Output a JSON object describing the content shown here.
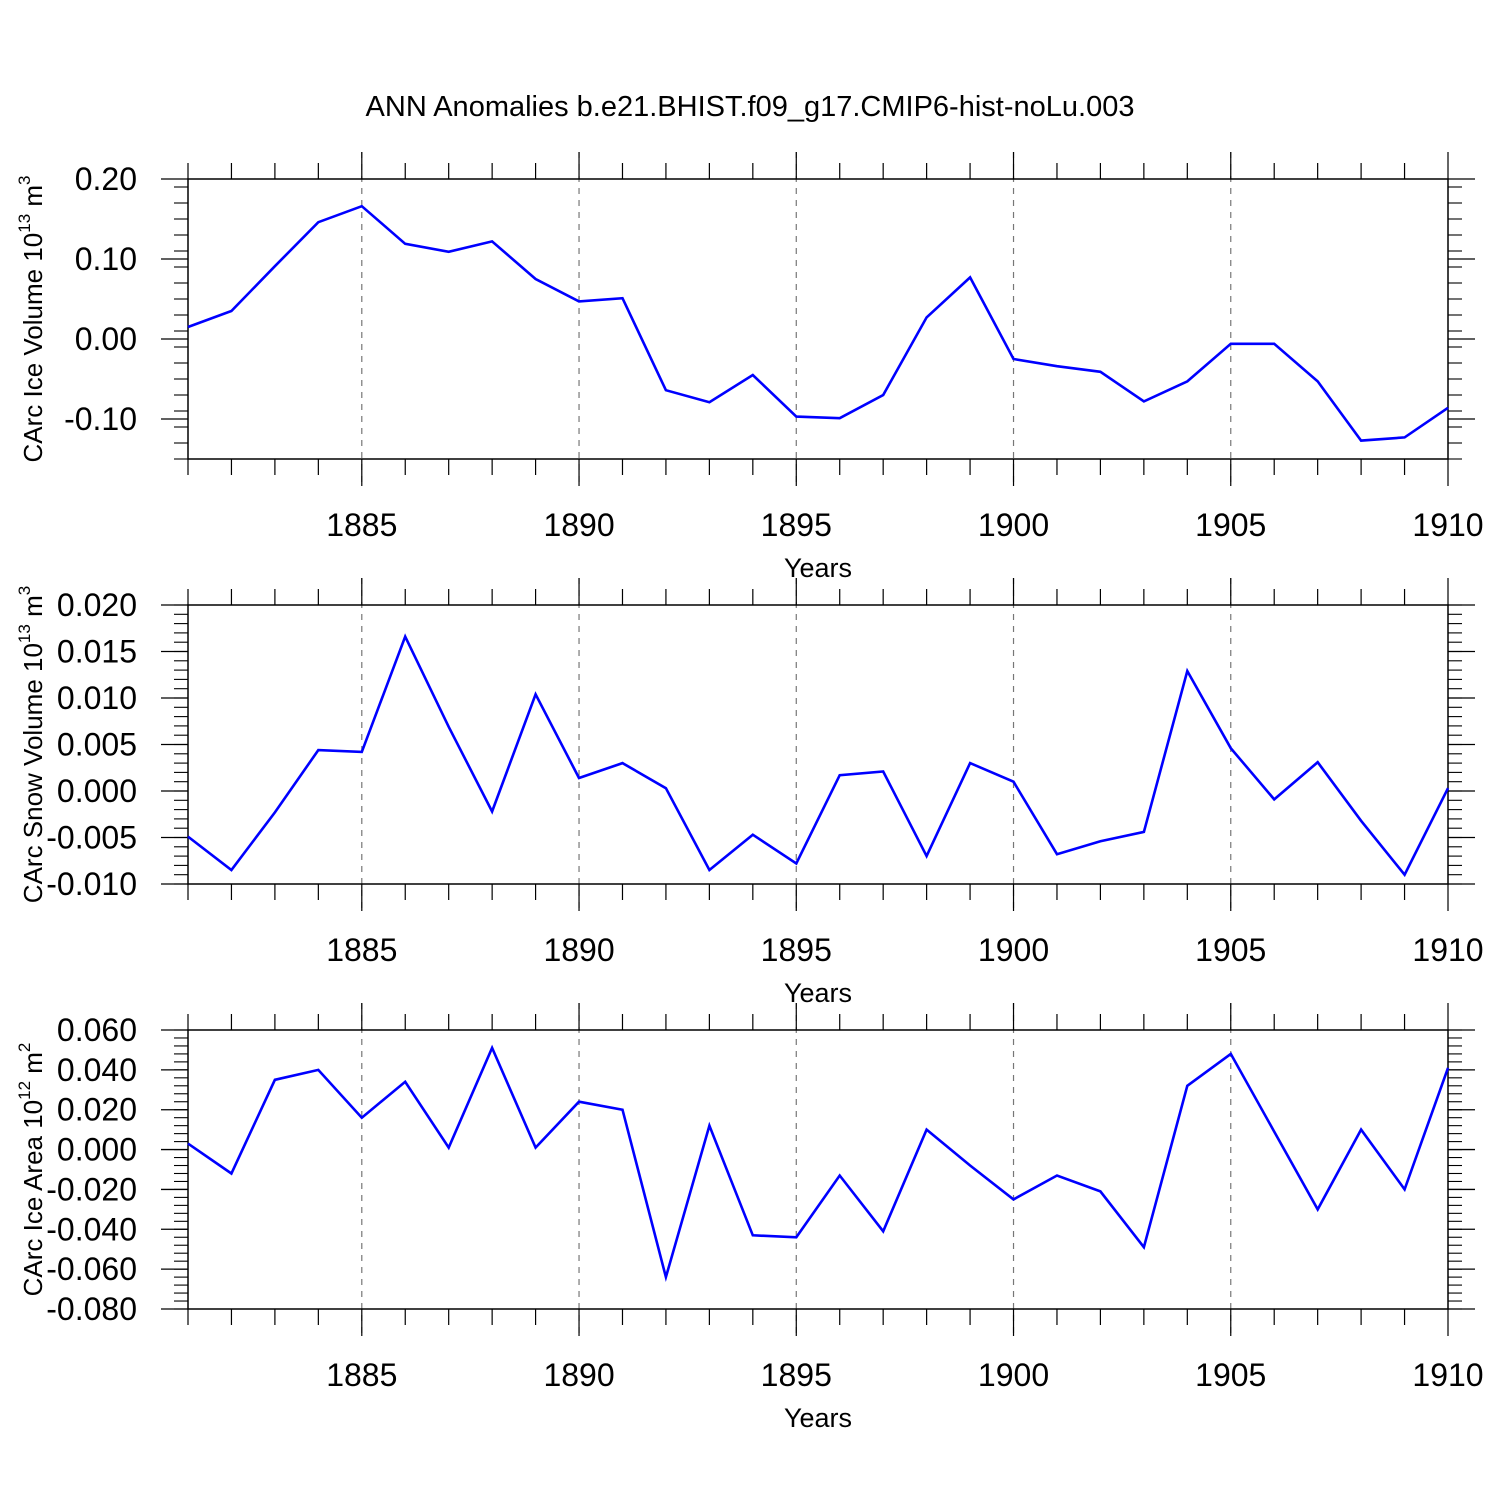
{
  "title": "ANN Anomalies b.e21.BHIST.f09_g17.CMIP6-hist-noLu.003",
  "chart_data": [
    {
      "type": "line",
      "ylabel": {
        "text": "CArc Ice Volume 10",
        "exponent": "13",
        "unit": " m",
        "unit_exponent": "3"
      },
      "xlabel": "Years",
      "xlim": [
        1881,
        1910
      ],
      "ylim": [
        -0.15,
        0.2
      ],
      "yticks": [
        -0.1,
        0.0,
        0.1,
        0.2
      ],
      "ytick_labels": [
        "-0.10",
        "0.00",
        "0.10",
        "0.20"
      ],
      "xticks": [
        1885,
        1890,
        1895,
        1900,
        1905,
        1910
      ],
      "xtick_labels": [
        "1885",
        "1890",
        "1895",
        "1900",
        "1905",
        "1910"
      ],
      "color": "#0000ff",
      "series": [
        {
          "name": "CArc Ice Volume",
          "x": [
            1881,
            1882,
            1883,
            1884,
            1885,
            1886,
            1887,
            1888,
            1889,
            1890,
            1891,
            1892,
            1893,
            1894,
            1895,
            1896,
            1897,
            1898,
            1899,
            1900,
            1901,
            1902,
            1903,
            1904,
            1905,
            1906,
            1907,
            1908,
            1909,
            1910
          ],
          "values": [
            0.015,
            0.035,
            0.091,
            0.146,
            0.166,
            0.119,
            0.109,
            0.122,
            0.075,
            0.047,
            0.051,
            -0.064,
            -0.079,
            -0.045,
            -0.097,
            -0.099,
            -0.07,
            0.027,
            0.077,
            -0.025,
            -0.034,
            -0.041,
            -0.078,
            -0.053,
            -0.006,
            -0.006,
            -0.053,
            -0.127,
            -0.123,
            -0.086
          ]
        }
      ]
    },
    {
      "type": "line",
      "ylabel": {
        "text": "CArc Snow Volume 10",
        "exponent": "13",
        "unit": " m",
        "unit_exponent": "3"
      },
      "xlabel": "Years",
      "xlim": [
        1881,
        1910
      ],
      "ylim": [
        -0.01,
        0.02
      ],
      "yticks": [
        -0.01,
        -0.005,
        0.0,
        0.005,
        0.01,
        0.015,
        0.02
      ],
      "ytick_labels": [
        "-0.010",
        "-0.005",
        "0.000",
        "0.005",
        "0.010",
        "0.015",
        "0.020"
      ],
      "xticks": [
        1885,
        1890,
        1895,
        1900,
        1905,
        1910
      ],
      "xtick_labels": [
        "1885",
        "1890",
        "1895",
        "1900",
        "1905",
        "1910"
      ],
      "color": "#0000ff",
      "series": [
        {
          "name": "CArc Snow Volume",
          "x": [
            1881,
            1882,
            1883,
            1884,
            1885,
            1886,
            1887,
            1888,
            1889,
            1890,
            1891,
            1892,
            1893,
            1894,
            1895,
            1896,
            1897,
            1898,
            1899,
            1900,
            1901,
            1902,
            1903,
            1904,
            1905,
            1906,
            1907,
            1908,
            1909,
            1910
          ],
          "values": [
            -0.0049,
            -0.0085,
            -0.0023,
            0.0044,
            0.0042,
            0.0166,
            0.0069,
            -0.0022,
            0.0104,
            0.0014,
            0.003,
            0.0003,
            -0.0085,
            -0.0047,
            -0.0078,
            0.0017,
            0.0021,
            -0.007,
            0.003,
            0.001,
            -0.0068,
            -0.0054,
            -0.0044,
            0.0129,
            0.0046,
            -0.0009,
            0.0031,
            -0.0032,
            -0.009,
            0.0003
          ]
        }
      ]
    },
    {
      "type": "line",
      "ylabel": {
        "text": "CArc Ice Area 10",
        "exponent": "12",
        "unit": " m",
        "unit_exponent": "2"
      },
      "xlabel": "Years",
      "xlim": [
        1881,
        1910
      ],
      "ylim": [
        -0.08,
        0.06
      ],
      "yticks": [
        -0.08,
        -0.06,
        -0.04,
        -0.02,
        0.0,
        0.02,
        0.04,
        0.06
      ],
      "ytick_labels": [
        "-0.080",
        "-0.060",
        "-0.040",
        "-0.020",
        "0.000",
        "0.020",
        "0.040",
        "0.060"
      ],
      "xticks": [
        1885,
        1890,
        1895,
        1900,
        1905,
        1910
      ],
      "xtick_labels": [
        "1885",
        "1890",
        "1895",
        "1900",
        "1905",
        "1910"
      ],
      "color": "#0000ff",
      "series": [
        {
          "name": "CArc Ice Area",
          "x": [
            1881,
            1882,
            1883,
            1884,
            1885,
            1886,
            1887,
            1888,
            1889,
            1890,
            1891,
            1892,
            1893,
            1894,
            1895,
            1896,
            1897,
            1898,
            1899,
            1900,
            1901,
            1902,
            1903,
            1904,
            1905,
            1906,
            1907,
            1908,
            1909,
            1910
          ],
          "values": [
            0.003,
            -0.012,
            0.035,
            0.04,
            0.016,
            0.034,
            0.001,
            0.051,
            0.001,
            0.024,
            0.02,
            -0.064,
            0.012,
            -0.043,
            -0.044,
            -0.013,
            -0.041,
            0.01,
            -0.008,
            -0.025,
            -0.013,
            -0.021,
            -0.049,
            0.032,
            0.048,
            0.009,
            -0.03,
            0.01,
            -0.02,
            0.041
          ]
        }
      ]
    }
  ]
}
